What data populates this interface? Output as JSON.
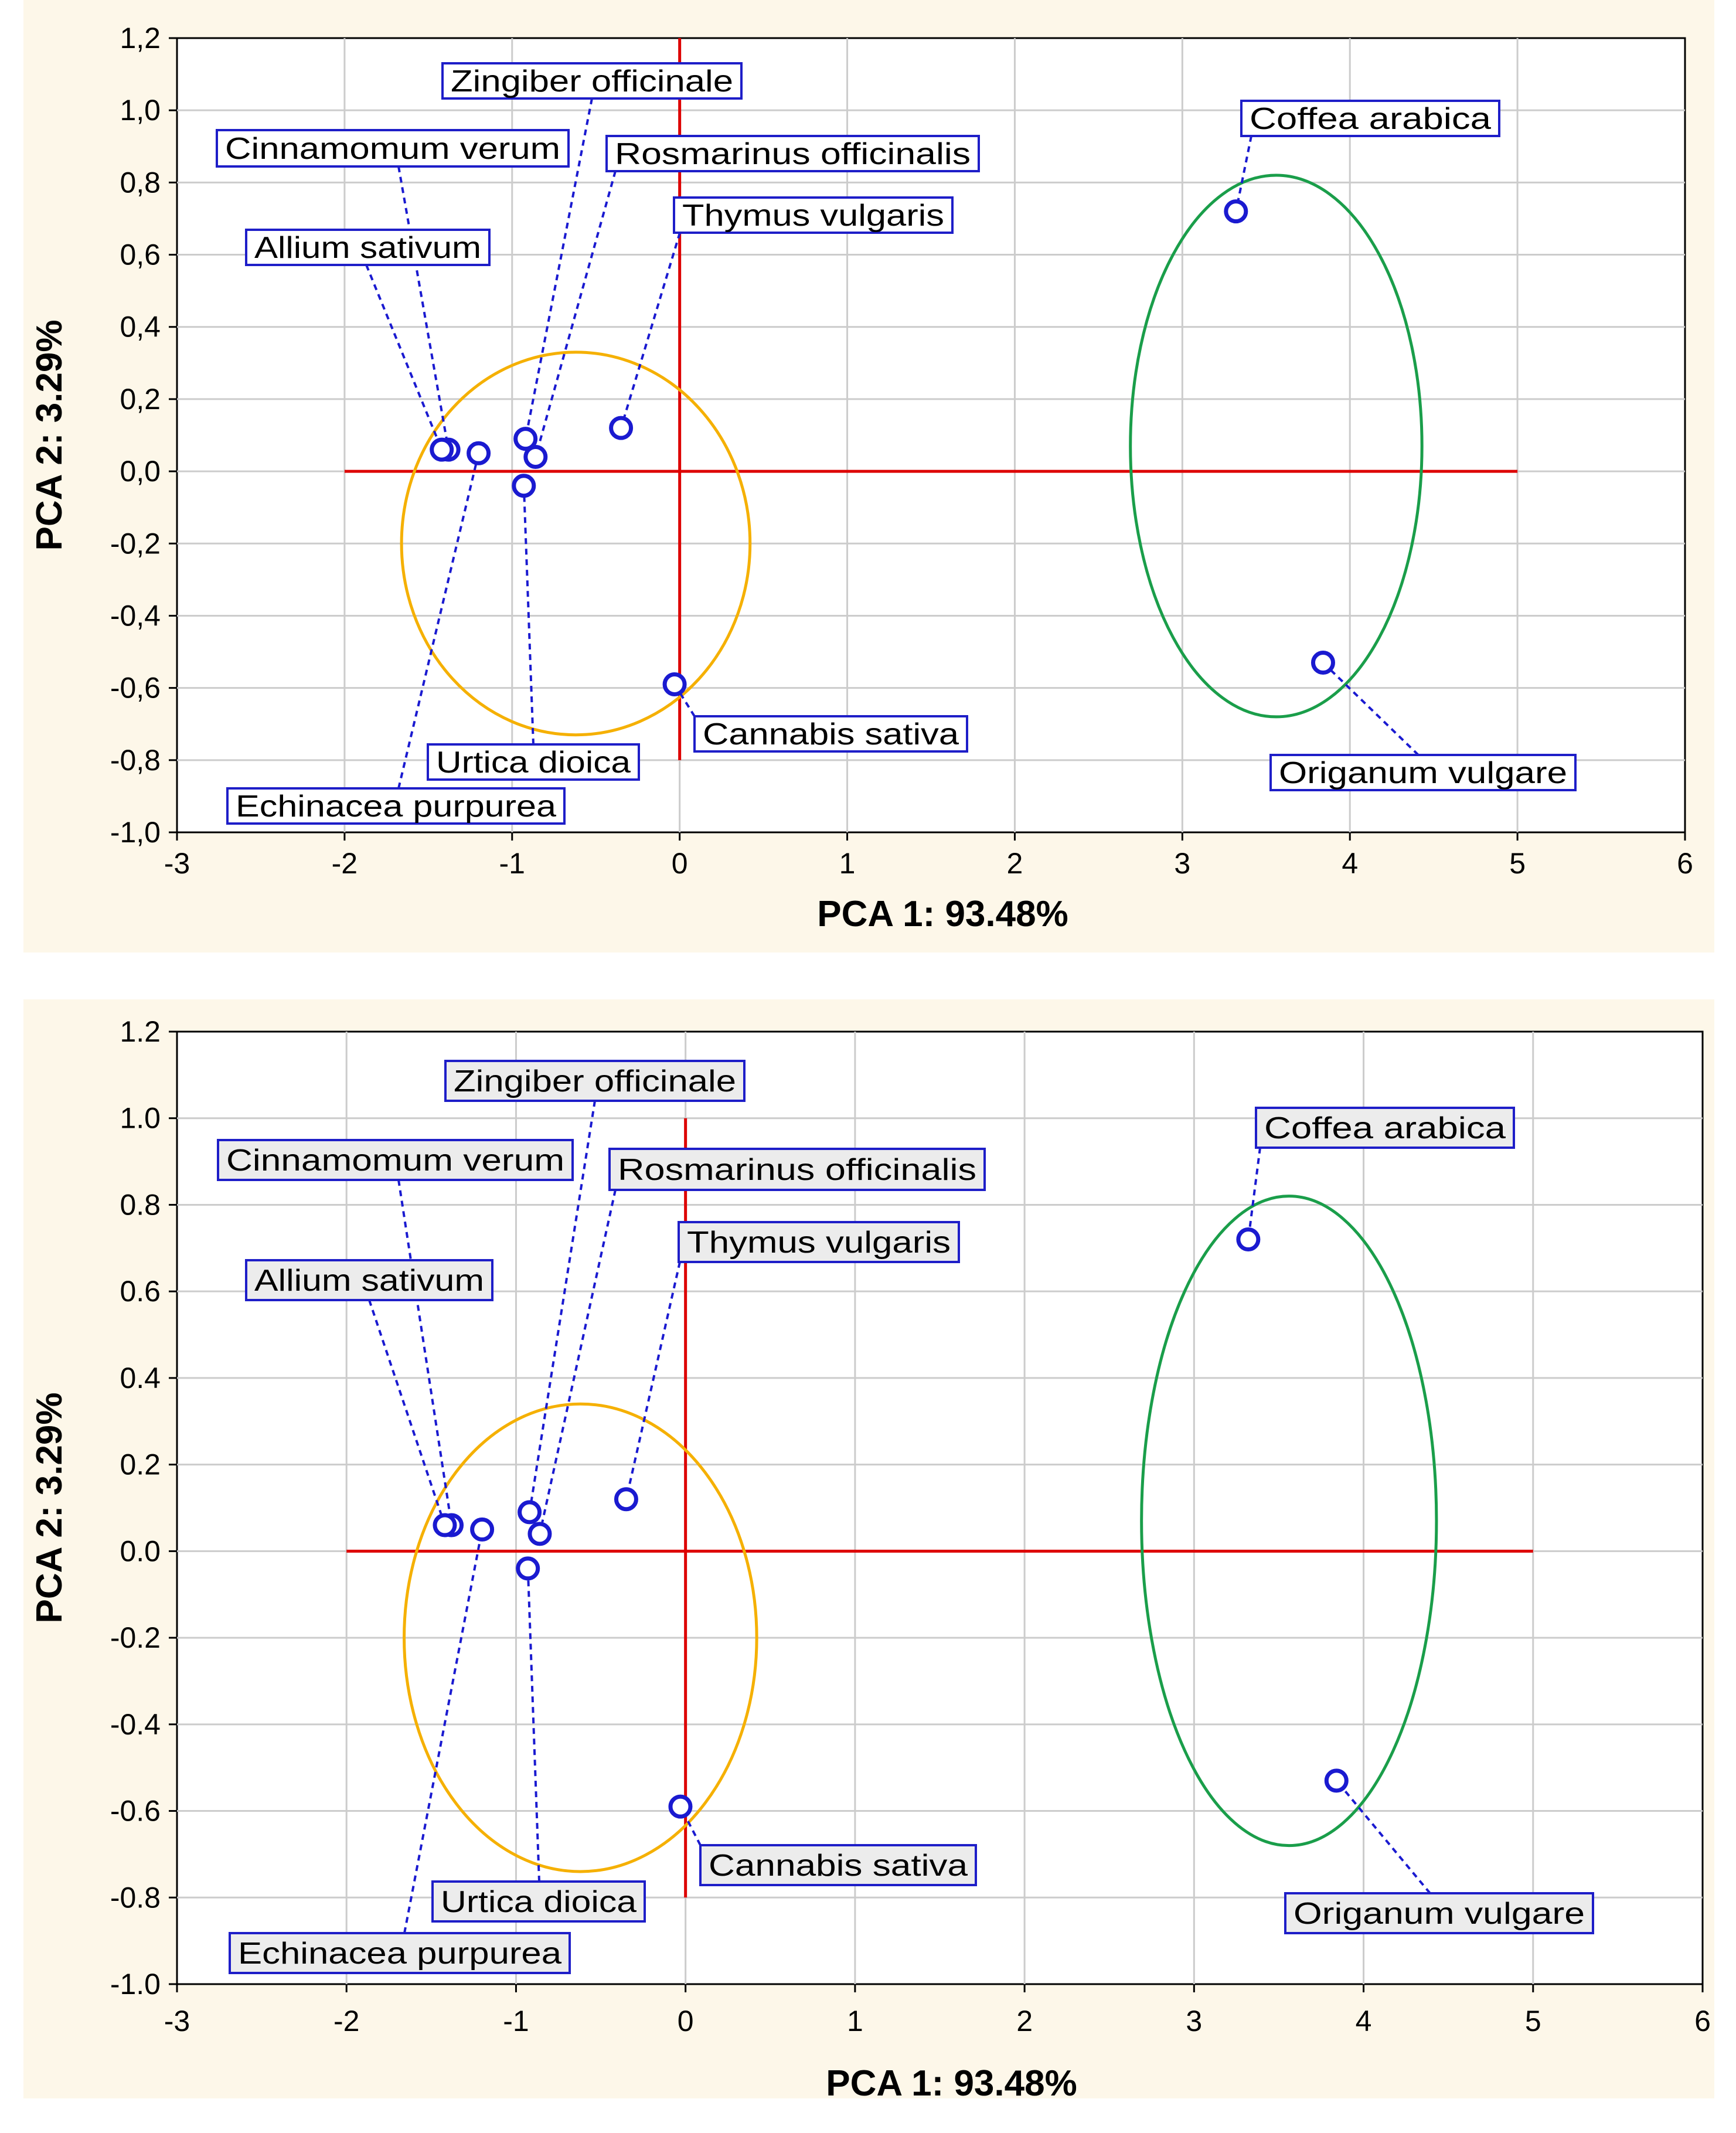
{
  "chart_data": [
    {
      "type": "scatter",
      "panel": "top",
      "xlabel": "PCA 1: 93.48%",
      "ylabel": "PCA 2:  3.29%",
      "xlim": [
        -3,
        6
      ],
      "ylim": [
        -1.0,
        1.2
      ],
      "xticks": [
        "-3",
        "-2",
        "-1",
        "0",
        "1",
        "2",
        "3",
        "4",
        "5",
        "6"
      ],
      "yticks": [
        "1,2",
        "1,0",
        "0,8",
        "0,6",
        "0,4",
        "0,2",
        "0,0",
        "-0,2",
        "-0,4",
        "-0,6",
        "-0,8",
        "-1,0"
      ],
      "grid": true,
      "points": [
        {
          "name": "Zingiber officinale",
          "x": -0.92,
          "y": 0.09
        },
        {
          "name": "Cinnamomum verum",
          "x": -1.38,
          "y": 0.06
        },
        {
          "name": "Rosmarinus officinalis",
          "x": -0.86,
          "y": 0.04
        },
        {
          "name": "Thymus vulgaris",
          "x": -0.35,
          "y": 0.12
        },
        {
          "name": "Allium sativum",
          "x": -1.42,
          "y": 0.06
        },
        {
          "name": "Urtica dioica",
          "x": -0.93,
          "y": -0.04
        },
        {
          "name": "Echinacea purpurea",
          "x": -1.2,
          "y": 0.05
        },
        {
          "name": "Cannabis sativa",
          "x": -0.03,
          "y": -0.59
        },
        {
          "name": "Coffea arabica",
          "x": 3.32,
          "y": 0.72
        },
        {
          "name": "Origanum vulgare",
          "x": 3.84,
          "y": -0.53
        }
      ],
      "clusters": [
        {
          "cx": -0.62,
          "cy": -0.2,
          "rx": 1.04,
          "ry": 0.53,
          "color": "#f5b000"
        },
        {
          "cx": 3.56,
          "cy": 0.07,
          "rx": 0.87,
          "ry": 0.75,
          "color": "#1a9e4a"
        }
      ],
      "reference_lines": {
        "horizontal": {
          "y": 0.0,
          "x_from": -2,
          "x_to": 5
        },
        "vertical": {
          "x": 0.0,
          "y_from": -0.8,
          "y_to": 1.2
        },
        "color": "#dd0000"
      }
    },
    {
      "type": "scatter",
      "panel": "bottom",
      "xlabel": "PCA 1: 93.48%",
      "ylabel": "PCA 2:  3.29%",
      "xlim": [
        -3,
        6
      ],
      "ylim": [
        -1.0,
        1.2
      ],
      "xticks": [
        "-3",
        "-2",
        "-1",
        "0",
        "1",
        "2",
        "3",
        "4",
        "5",
        "6"
      ],
      "yticks": [
        "1.2",
        "1.0",
        "0.8",
        "0.6",
        "0.4",
        "0.2",
        "0.0",
        "-0.2",
        "-0.4",
        "-0.6",
        "-0.8",
        "-1.0"
      ],
      "grid": true,
      "points": [
        {
          "name": "Zingiber officinale",
          "x": -0.92,
          "y": 0.09
        },
        {
          "name": "Cinnamomum verum",
          "x": -1.38,
          "y": 0.06
        },
        {
          "name": "Rosmarinus officinalis",
          "x": -0.86,
          "y": 0.04
        },
        {
          "name": "Thymus vulgaris",
          "x": -0.35,
          "y": 0.12
        },
        {
          "name": "Allium sativum",
          "x": -1.42,
          "y": 0.06
        },
        {
          "name": "Urtica dioica",
          "x": -0.93,
          "y": -0.04
        },
        {
          "name": "Echinacea purpurea",
          "x": -1.2,
          "y": 0.05
        },
        {
          "name": "Cannabis sativa",
          "x": -0.03,
          "y": -0.59
        },
        {
          "name": "Coffea arabica",
          "x": 3.32,
          "y": 0.72
        },
        {
          "name": "Origanum vulgare",
          "x": 3.84,
          "y": -0.53
        }
      ],
      "clusters": [
        {
          "cx": -0.62,
          "cy": -0.2,
          "rx": 1.04,
          "ry": 0.54,
          "color": "#f5b000"
        },
        {
          "cx": 3.56,
          "cy": 0.07,
          "rx": 0.87,
          "ry": 0.75,
          "color": "#1a9e4a"
        }
      ],
      "reference_lines": {
        "horizontal": {
          "y": 0.0,
          "x_from": -2,
          "x_to": 5
        },
        "vertical": {
          "x": 0.0,
          "y_from": -0.8,
          "y_to": 1.0
        },
        "color": "#dd0000"
      }
    }
  ],
  "colors": {
    "frame_background": "#fdf7e9",
    "plot_background": "#ffffff",
    "grid": "#cccccc",
    "marker": "#1a1ad0",
    "leader": "#1a1ad0"
  }
}
